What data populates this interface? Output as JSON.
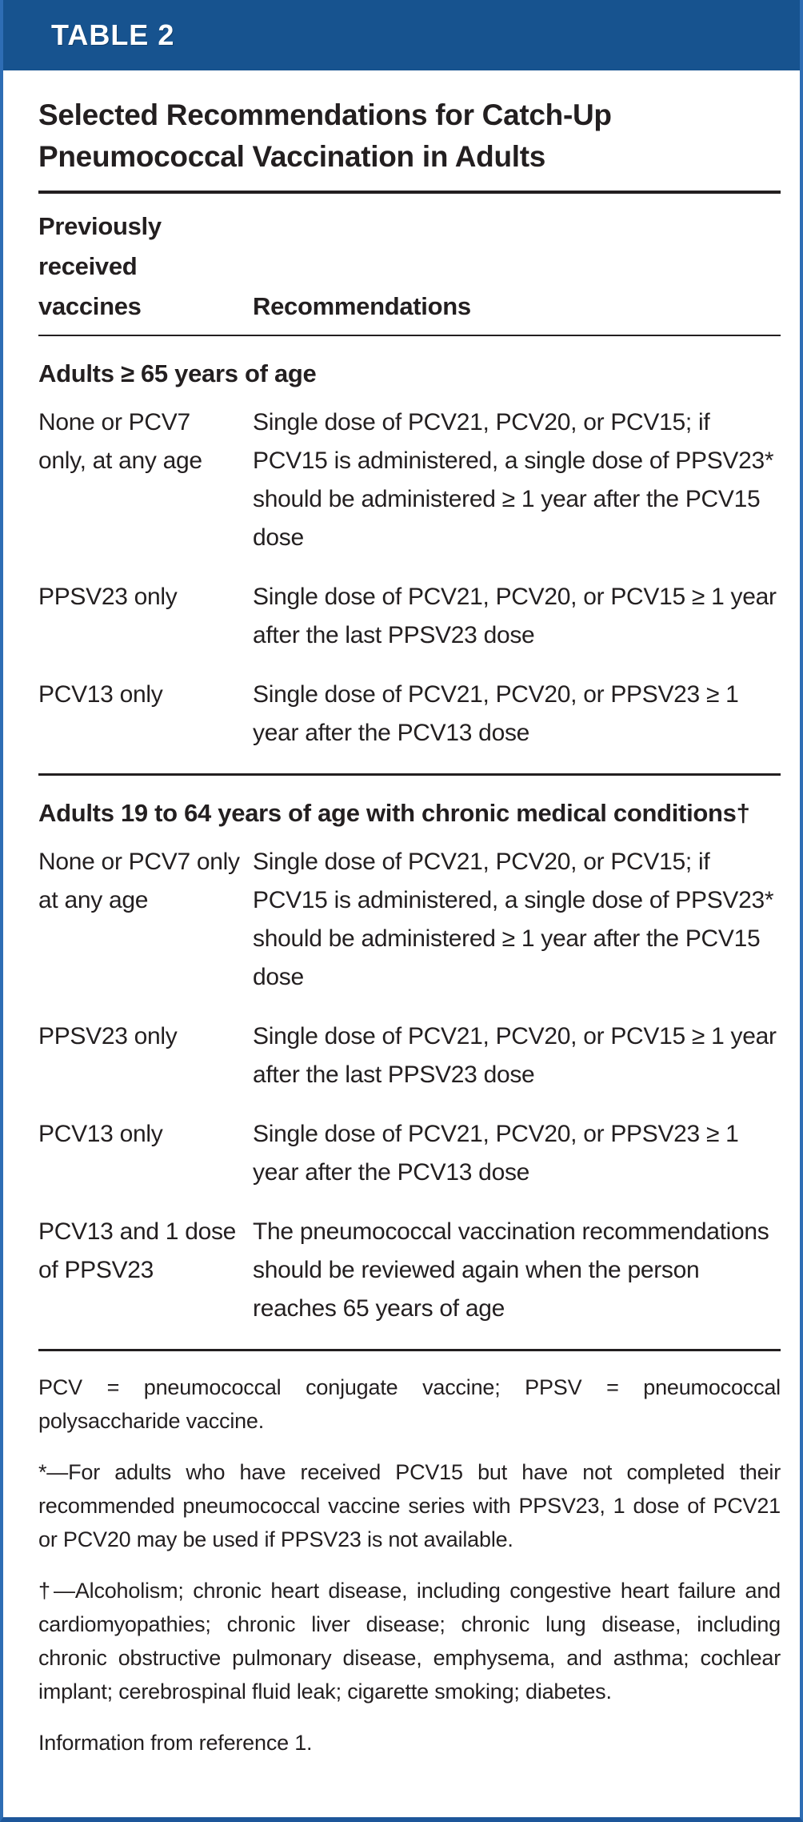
{
  "table": {
    "tag": "TABLE 2",
    "title": "Selected Recommendations for Catch-Up Pneumococcal Vaccination in Adults",
    "columns": [
      "Previously received vaccines",
      "Recommendations"
    ],
    "sections": [
      {
        "heading": "Adults ≥ 65 years of age",
        "rows": [
          {
            "received": "None or PCV7 only, at any age",
            "recommendation": "Single dose of PCV21, PCV20, or PCV15; if PCV15 is administered, a single dose of PPSV23* should be administered ≥ 1 year after the PCV15 dose"
          },
          {
            "received": "PPSV23 only",
            "recommendation": "Single dose of PCV21, PCV20, or PCV15 ≥ 1 year after the last PPSV23 dose"
          },
          {
            "received": "PCV13 only",
            "recommendation": "Single dose of PCV21, PCV20, or PPSV23 ≥ 1 year after the PCV13 dose"
          }
        ]
      },
      {
        "heading": "Adults 19 to 64 years of age with chronic medical conditions†",
        "rows": [
          {
            "received": "None or PCV7 only at any age",
            "recommendation": "Single dose of PCV21, PCV20, or PCV15; if PCV15 is administered, a single dose of PPSV23* should be administered ≥ 1 year after the PCV15 dose"
          },
          {
            "received": "PPSV23 only",
            "recommendation": "Single dose of PCV21, PCV20, or PCV15 ≥ 1 year after the last PPSV23 dose"
          },
          {
            "received": "PCV13 only",
            "recommendation": "Single dose of PCV21, PCV20, or PPSV23 ≥ 1 year after the PCV13 dose"
          },
          {
            "received": "PCV13 and 1 dose of PPSV23",
            "recommendation": "The pneumococcal vaccination recommendations should be reviewed again when the person reaches 65 years of age"
          }
        ]
      }
    ],
    "footnotes": [
      "PCV = pneumococcal conjugate vaccine; PPSV = pneumococcal polysaccharide vaccine.",
      "*—For adults who have received PCV15 but have not completed their recommended pneumococcal vaccine series with PPSV23, 1 dose of PCV21 or PCV20 may be used if PPSV23 is not available.",
      "†—Alcoholism; chronic heart disease, including congestive heart failure and cardiomyopathies; chronic liver disease; chronic lung disease, including chronic obstructive pulmonary disease, emphysema, and asthma; cochlear implant; cerebrospinal fluid leak; cigarette smoking; diabetes.",
      "Information from reference 1."
    ],
    "colors": {
      "header_bar": "#17538f",
      "border": "#2e6db4",
      "text": "#231f20",
      "tag_text": "#ffffff"
    }
  }
}
